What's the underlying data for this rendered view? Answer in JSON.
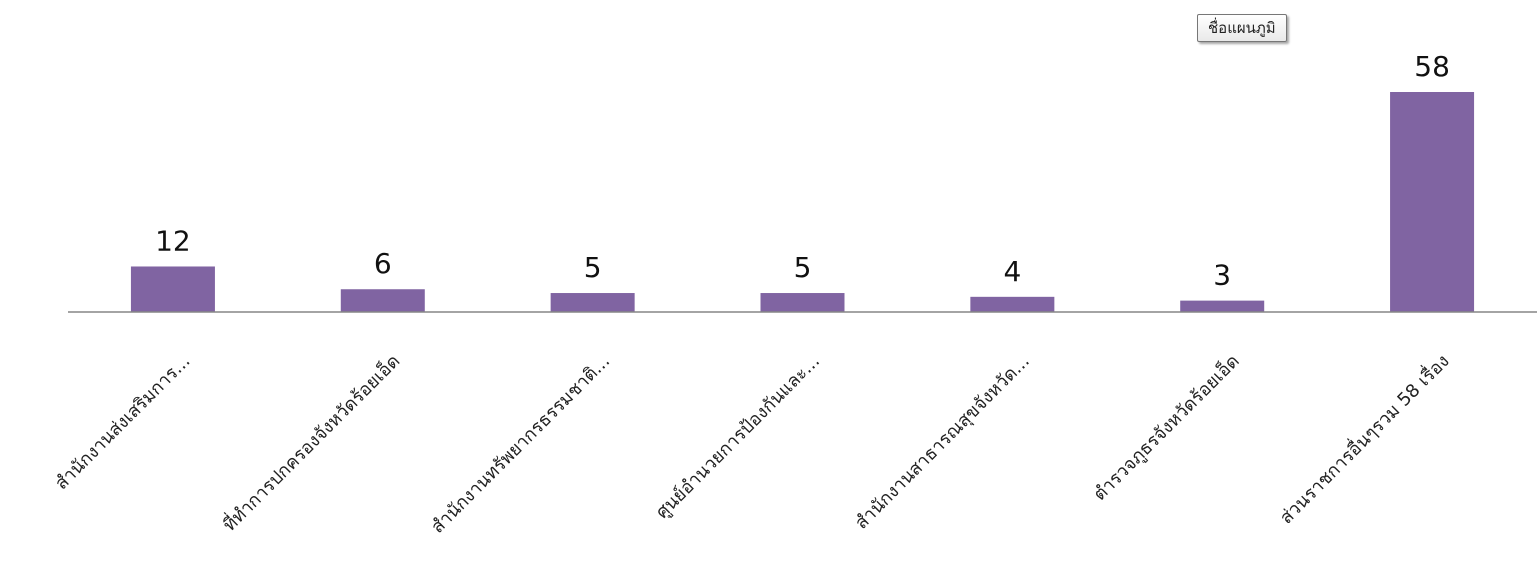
{
  "legend": {
    "label": "ชื่อแผนภูมิ"
  },
  "chart_data": {
    "type": "bar",
    "categories": [
      "สำนักงานส่งเสริมการ...",
      "ที่ทำการปกครองจังหวัดร้อยเอ็ด",
      "สำนักงานทรัพยากรธรรมชาติ...",
      "ศูนย์อำนวยการป้องกันและ...",
      "สำนักงานสาธารณสุขจังหวัด...",
      "ตำรวจภูธรจังหวัดร้อยเอ็ด",
      "ส่วนราชการอื่นๆรวม 58 เรื่อง"
    ],
    "values": [
      12,
      6,
      5,
      5,
      4,
      3,
      58
    ],
    "color": "#8064a2",
    "axis_color": "#868686",
    "ylim": [
      0,
      60
    ],
    "data_labels": true,
    "grid": false
  }
}
